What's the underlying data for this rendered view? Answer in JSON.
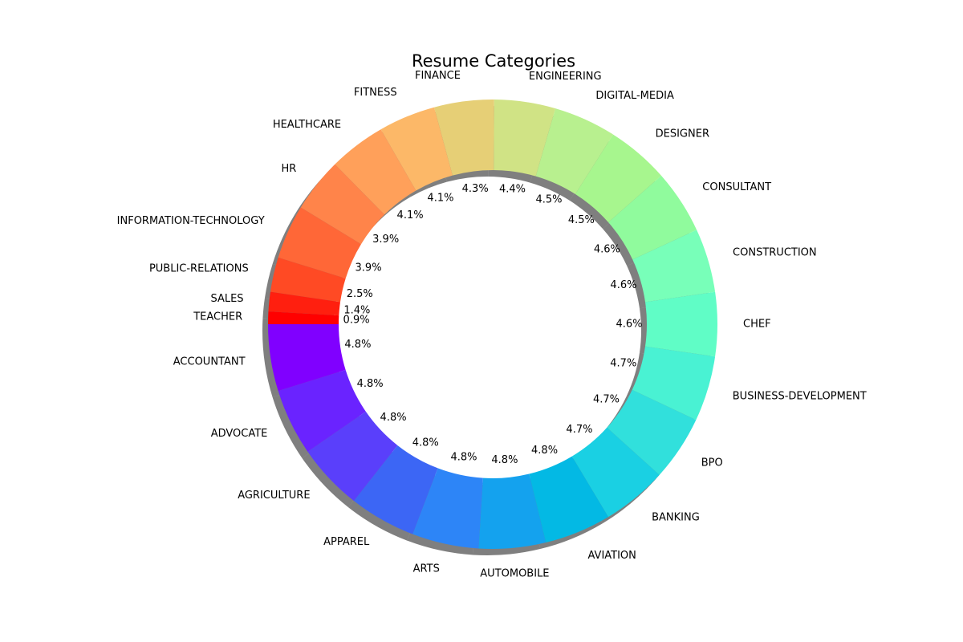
{
  "chart_data": {
    "type": "pie",
    "title": "Resume Categories",
    "donut": true,
    "start_angle_deg": 180,
    "direction": "counterclockwise",
    "slices": [
      {
        "label": "ACCOUNTANT",
        "value": 4.8,
        "pct_label": "4.8%",
        "color": "#8000ff"
      },
      {
        "label": "ADVOCATE",
        "value": 4.8,
        "pct_label": "4.8%",
        "color": "#6a23ff"
      },
      {
        "label": "AGRICULTURE",
        "value": 4.8,
        "pct_label": "4.8%",
        "color": "#5a3ffb"
      },
      {
        "label": "APPAREL",
        "value": 4.8,
        "pct_label": "4.8%",
        "color": "#3c66f5"
      },
      {
        "label": "ARTS",
        "value": 4.8,
        "pct_label": "4.8%",
        "color": "#2d85f7"
      },
      {
        "label": "AUTOMOBILE",
        "value": 4.8,
        "pct_label": "4.8%",
        "color": "#14a2ee"
      },
      {
        "label": "AVIATION",
        "value": 4.8,
        "pct_label": "4.8%",
        "color": "#03b9e4"
      },
      {
        "label": "BANKING",
        "value": 4.7,
        "pct_label": "4.7%",
        "color": "#1ad0e3"
      },
      {
        "label": "BPO",
        "value": 4.7,
        "pct_label": "4.7%",
        "color": "#31e0dc"
      },
      {
        "label": "BUSINESS-DEVELOPMENT",
        "value": 4.7,
        "pct_label": "4.7%",
        "color": "#49f2d3"
      },
      {
        "label": "CHEF",
        "value": 4.6,
        "pct_label": "4.6%",
        "color": "#60fdc6"
      },
      {
        "label": "CONSTRUCTION",
        "value": 4.6,
        "pct_label": "4.6%",
        "color": "#78ffb9"
      },
      {
        "label": "CONSULTANT",
        "value": 4.6,
        "pct_label": "4.6%",
        "color": "#90fb9d"
      },
      {
        "label": "DESIGNER",
        "value": 4.5,
        "pct_label": "4.5%",
        "color": "#a7f68e"
      },
      {
        "label": "DIGITAL-MEDIA",
        "value": 4.5,
        "pct_label": "4.5%",
        "color": "#b8f08f"
      },
      {
        "label": "ENGINEERING",
        "value": 4.4,
        "pct_label": "4.4%",
        "color": "#d0e385"
      },
      {
        "label": "FINANCE",
        "value": 4.3,
        "pct_label": "4.3%",
        "color": "#e6cf76"
      },
      {
        "label": "FITNESS",
        "value": 4.1,
        "pct_label": "4.1%",
        "color": "#fcb868"
      },
      {
        "label": "HEALTHCARE",
        "value": 4.1,
        "pct_label": "4.1%",
        "color": "#ffa05a"
      },
      {
        "label": "HR",
        "value": 3.9,
        "pct_label": "3.9%",
        "color": "#ff844a"
      },
      {
        "label": "INFORMATION-TECHNOLOGY",
        "value": 3.9,
        "pct_label": "3.9%",
        "color": "#ff6737"
      },
      {
        "label": "PUBLIC-RELATIONS",
        "value": 2.5,
        "pct_label": "2.5%",
        "color": "#ff4a24"
      },
      {
        "label": "SALES",
        "value": 1.4,
        "pct_label": "1.4%",
        "color": "#ff1f0f"
      },
      {
        "label": "TEACHER",
        "value": 0.9,
        "pct_label": "0.9%",
        "color": "#ff0000"
      }
    ]
  }
}
